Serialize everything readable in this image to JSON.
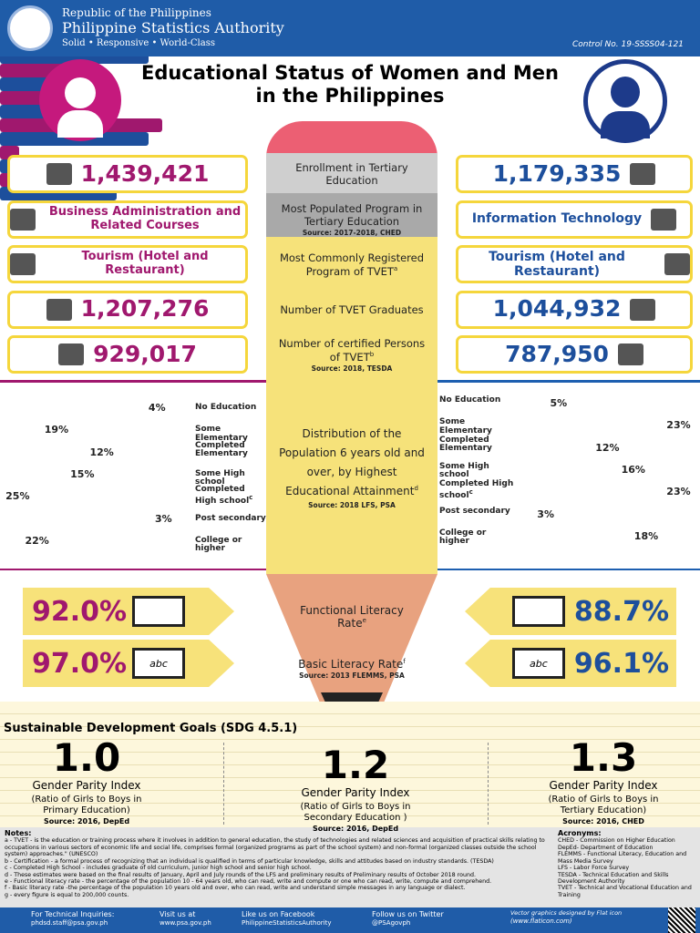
{
  "header": {
    "line1": "Republic of the Philippines",
    "line2": "Philippine Statistics Authority",
    "line3": "Solid • Responsive • World-Class",
    "control": "Control No. 19-SSSS04-121"
  },
  "title": [
    "Educational Status of Women and Men",
    "in the Philippines"
  ],
  "rows": [
    {
      "women": "1,439,421",
      "label": "Enrollment in Tertiary Education",
      "men": "1,179,335"
    },
    {
      "women": "Business Administration and Related Courses",
      "label": "Most Populated Program in Tertiary Education",
      "source": "Source: 2017-2018, CHED",
      "men": "Information Technology"
    },
    {
      "women": "Tourism (Hotel and Restaurant)",
      "label": "Most Commonly Registered Program of TVET",
      "note": "a",
      "men": "Tourism (Hotel and Restaurant)"
    },
    {
      "women": "1,207,276",
      "label": "Number of TVET Graduates",
      "men": "1,044,932"
    },
    {
      "women": "929,017",
      "label": "Number of certified Persons of TVET",
      "note": "b",
      "source": "Source: 2018, TESDA",
      "men": "787,950"
    }
  ],
  "distribution": {
    "label": "Distribution of the Population 6 years old and over, by Highest Educational Attainment",
    "note": "d",
    "source": "Source: 2018 LFS, PSA",
    "categories": [
      "No Education",
      "Some Elementary",
      "Completed Elementary",
      "Some High school",
      "Completed High school",
      "Post secondary",
      "College or higher"
    ],
    "category_note": "c",
    "women": {
      "values": [
        4,
        19,
        12,
        15,
        25,
        3,
        22
      ],
      "value_labels": [
        "4%",
        "19%",
        "12%",
        "15%",
        "25%",
        "3%",
        "22%"
      ]
    },
    "men": {
      "values": [
        5,
        23,
        12,
        16,
        23,
        3,
        18
      ],
      "value_labels": [
        "5%",
        "23%",
        "12%",
        "16%",
        "23%",
        "3%",
        "18%"
      ]
    }
  },
  "literacy": [
    {
      "label": "Functional Literacy Rate",
      "note": "e",
      "women": "92.0%",
      "men": "88.7%"
    },
    {
      "label": "Basic Literacy Rate",
      "note": "f",
      "source": "Source: 2013 FLEMMS, PSA",
      "women": "97.0%",
      "men": "96.1%",
      "icon": "abc"
    }
  ],
  "sdg": {
    "title": "Sustainable Development Goals (SDG 4.5.1)",
    "items": [
      {
        "value": "1.0",
        "label": "Gender Parity Index",
        "desc": "(Ratio of Girls to Boys in Primary Education)",
        "source": "Source: 2016, DepEd"
      },
      {
        "value": "1.2",
        "label": "Gender Parity Index",
        "desc": "(Ratio of Girls to Boys in Secondary Education )",
        "source": "Source: 2016, DepEd"
      },
      {
        "value": "1.3",
        "label": "Gender Parity Index",
        "desc": "(Ratio of Girls to Boys in Tertiary Education)",
        "source": "Source: 2016, CHED"
      }
    ]
  },
  "notes": {
    "title": "Notes:",
    "lines": [
      "a - TVET - is the education or training process where it involves in addition to general education, the study of technologies and related sciences and acquisition of practical skills relating to occupations in various sectors of economic life and social life, comprises formal (organized programs as part of the school system) and non-formal (organized classes outside the school system) approaches.\" (UNESCO)",
      "b - Certification - a formal process of recognizing that an individual is qualified in terms of particular knowledge, skills and attitudes based on industry standards. (TESDA)",
      "c - Completed High School - includes graduate of old curriculum, junior high school and senior high school.",
      "d - These estimates were based on the final results of January, April and July rounds of the LFS and preliminary results of Preliminary results of October 2018 round.",
      "e - Functional literacy rate - the percentage of the population 10 - 64 years old, who can read, write and compute or one who can read, write, compute and comprehend.",
      "f - Basic literacy rate -the percentage of the population 10 years old and over, who can read, write and understand simple messages in any language or dialect.",
      "g - every figure is equal to 200,000 counts."
    ]
  },
  "acronyms": {
    "title": "Acronyms:",
    "lines": [
      "CHED - Commission on Higher Education",
      "DepEd- Department of Education",
      "FLEMMS - Functional Literacy, Education and Mass Media Survey",
      "LFS - Labor Force Survey",
      "TESDA - Technical Education and Skills Development Authority",
      "TVET - Technical and Vocational Education and Training"
    ]
  },
  "footer": [
    {
      "label": "For Technical Inquiries:",
      "detail": "phdsd.staff@psa.gov.ph"
    },
    {
      "label": "Visit us at",
      "detail": "www.psa.gov.ph"
    },
    {
      "label": "Like us on Facebook",
      "detail": "PhilippineStatisticsAuthority"
    },
    {
      "label": "Follow us on Twitter",
      "detail": "@PSAgovph"
    },
    {
      "label": "Vector graphics designed by Flat icon",
      "detail": "(www.flaticon.com)"
    }
  ]
}
